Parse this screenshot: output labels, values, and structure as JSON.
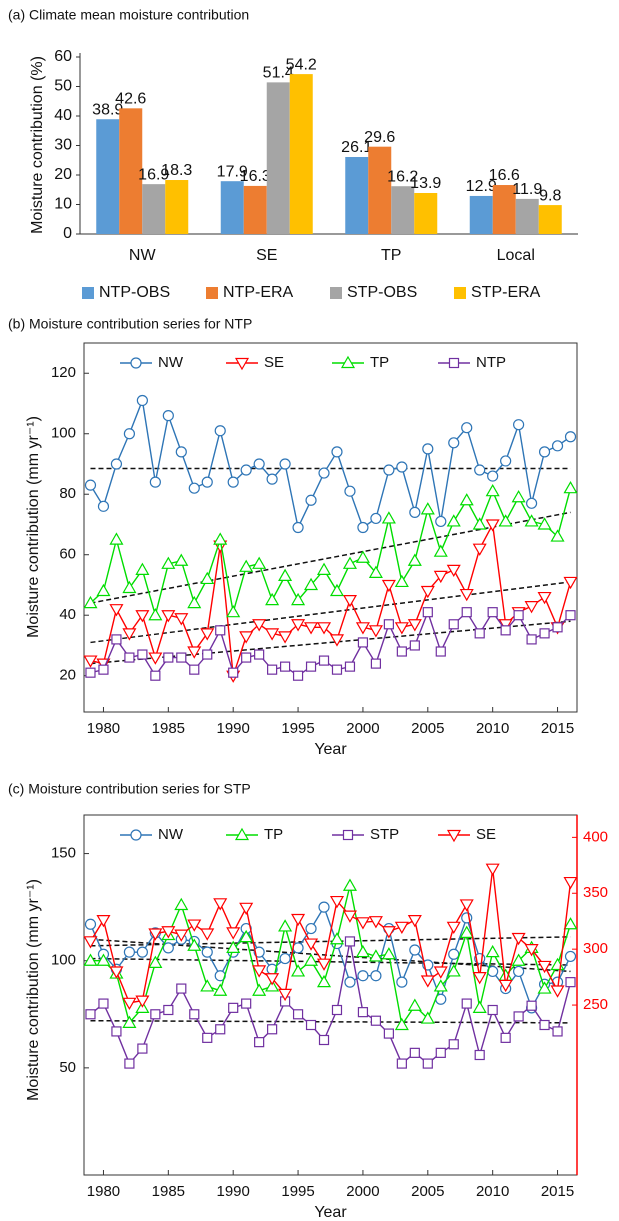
{
  "chart_data": [
    {
      "type": "bar",
      "title": "(a) Climate mean moisture contribution",
      "y_label": "Moisture contribution (%)",
      "categories": [
        "NW",
        "SE",
        "TP",
        "Local"
      ],
      "series": [
        {
          "name": "NTP-OBS",
          "color": "#5b9bd5",
          "values": [
            38.9,
            17.9,
            26.1,
            12.9
          ]
        },
        {
          "name": "NTP-ERA",
          "color": "#ed7d31",
          "values": [
            42.6,
            16.3,
            29.6,
            16.6
          ]
        },
        {
          "name": "STP-OBS",
          "color": "#a5a5a5",
          "values": [
            16.9,
            51.4,
            16.2,
            11.9
          ]
        },
        {
          "name": "STP-ERA",
          "color": "#ffc000",
          "values": [
            18.3,
            54.2,
            13.9,
            9.8
          ]
        }
      ],
      "ylim": [
        0,
        60
      ],
      "yticks": [
        0,
        10,
        20,
        30,
        40,
        50,
        60
      ],
      "legend": "bottom"
    },
    {
      "type": "line",
      "title": "(b) Moisture contribution series for NTP",
      "x_label": "Year",
      "y_label": "Moisture contribution (mm yr⁻¹)",
      "x": [
        1979,
        1980,
        1981,
        1982,
        1983,
        1984,
        1985,
        1986,
        1987,
        1988,
        1989,
        1990,
        1991,
        1992,
        1993,
        1994,
        1995,
        1996,
        1997,
        1998,
        1999,
        2000,
        2001,
        2002,
        2003,
        2004,
        2005,
        2006,
        2007,
        2008,
        2009,
        2010,
        2011,
        2012,
        2013,
        2014,
        2015,
        2016
      ],
      "series": [
        {
          "name": "NW",
          "color": "#2e75b6",
          "marker": "o",
          "values": [
            83,
            76,
            90,
            100,
            111,
            84,
            106,
            94,
            82,
            84,
            101,
            84,
            88,
            90,
            85,
            90,
            69,
            78,
            87,
            94,
            81,
            69,
            72,
            88,
            89,
            74,
            95,
            71,
            97,
            102,
            88,
            86,
            91,
            103,
            77,
            94,
            96,
            99
          ]
        },
        {
          "name": "SE",
          "color": "#ff0000",
          "marker": "v",
          "values": [
            25,
            24,
            42,
            34,
            40,
            26,
            40,
            39,
            28,
            34,
            63,
            20,
            33,
            37,
            34,
            33,
            37,
            36,
            36,
            32,
            45,
            36,
            35,
            50,
            36,
            37,
            48,
            53,
            55,
            47,
            62,
            70,
            37,
            41,
            43,
            46,
            36,
            51
          ]
        },
        {
          "name": "TP",
          "color": "#00dd00",
          "marker": "^",
          "values": [
            44,
            48,
            65,
            49,
            55,
            40,
            57,
            58,
            44,
            52,
            65,
            41,
            56,
            57,
            45,
            53,
            45,
            50,
            55,
            48,
            57,
            59,
            54,
            72,
            51,
            58,
            75,
            61,
            71,
            78,
            70,
            81,
            71,
            79,
            71,
            70,
            66,
            82
          ]
        },
        {
          "name": "NTP",
          "color": "#7030a0",
          "marker": "s",
          "values": [
            21,
            22,
            32,
            26,
            27,
            20,
            26,
            26,
            22,
            27,
            35,
            21,
            26,
            27,
            22,
            23,
            20,
            23,
            25,
            22,
            23,
            31,
            24,
            37,
            28,
            30,
            41,
            28,
            37,
            41,
            34,
            41,
            35,
            40,
            32,
            34,
            36,
            40
          ]
        }
      ],
      "trend_lines": [
        {
          "x": [
            1979,
            2016
          ],
          "values": [
            88.5,
            88.5
          ]
        },
        {
          "x": [
            1979,
            2016
          ],
          "values": [
            44,
            74
          ]
        },
        {
          "x": [
            1979,
            2016
          ],
          "values": [
            31,
            51
          ]
        },
        {
          "x": [
            1979,
            2016
          ],
          "values": [
            24,
            38
          ]
        }
      ],
      "xlim": [
        1978.5,
        2016.5
      ],
      "xticks": [
        1980,
        1985,
        1990,
        1995,
        2000,
        2005,
        2010,
        2015
      ],
      "ylim": [
        8,
        130
      ],
      "yticks": [
        20,
        40,
        60,
        80,
        100,
        120
      ],
      "legend": "top"
    },
    {
      "type": "line",
      "title": "(c) Moisture contribution series for STP",
      "x_label": "Year",
      "y_label": "Moisture contribution (mm yr⁻¹)",
      "x": [
        1979,
        1980,
        1981,
        1982,
        1983,
        1984,
        1985,
        1986,
        1987,
        1988,
        1989,
        1990,
        1991,
        1992,
        1993,
        1994,
        1995,
        1996,
        1997,
        1998,
        1999,
        2000,
        2001,
        2002,
        2003,
        2004,
        2005,
        2006,
        2007,
        2008,
        2009,
        2010,
        2011,
        2012,
        2013,
        2014,
        2015,
        2016
      ],
      "series": [
        {
          "name": "NW",
          "color": "#2e75b6",
          "marker": "o",
          "values": [
            117,
            103,
            96,
            104,
            104,
            113,
            106,
            110,
            109,
            104,
            93,
            104,
            115,
            104,
            96,
            101,
            106,
            115,
            125,
            108,
            90,
            93,
            93,
            115,
            90,
            105,
            98,
            82,
            103,
            120,
            101,
            95,
            87,
            95,
            78,
            89,
            90,
            102
          ]
        },
        {
          "name": "TP",
          "color": "#00dd00",
          "marker": "^",
          "values": [
            100,
            100,
            94,
            71,
            78,
            99,
            112,
            126,
            107,
            88,
            86,
            106,
            111,
            86,
            88,
            116,
            95,
            100,
            90,
            110,
            135,
            104,
            102,
            103,
            70,
            79,
            73,
            88,
            95,
            113,
            78,
            104,
            93,
            100,
            106,
            87,
            98,
            117
          ]
        },
        {
          "name": "STP",
          "color": "#7030a0",
          "marker": "s",
          "values": [
            75,
            80,
            67,
            52,
            59,
            75,
            77,
            87,
            75,
            64,
            68,
            78,
            80,
            62,
            68,
            81,
            75,
            70,
            63,
            77,
            109,
            76,
            72,
            66,
            52,
            57,
            52,
            57,
            61,
            80,
            56,
            77,
            64,
            74,
            79,
            70,
            67,
            90
          ]
        },
        {
          "name": "SE",
          "color": "#ff0000",
          "marker": "v",
          "axis": "y2",
          "values": [
            307,
            326,
            280,
            252,
            254,
            314,
            316,
            313,
            322,
            314,
            341,
            315,
            337,
            281,
            274,
            260,
            327,
            305,
            287,
            343,
            330,
            324,
            325,
            316,
            320,
            326,
            272,
            280,
            320,
            340,
            275,
            372,
            268,
            310,
            300,
            285,
            263,
            360
          ]
        }
      ],
      "trend_lines": [
        {
          "x": [
            1979,
            2016
          ],
          "values": [
            110,
            95
          ]
        },
        {
          "x": [
            1979,
            2016
          ],
          "values": [
            101,
            98
          ]
        },
        {
          "x": [
            1979,
            2016
          ],
          "values": [
            72,
            71
          ]
        },
        {
          "x": [
            1979,
            2016
          ],
          "values": [
            303,
            311
          ],
          "axis": "y2"
        }
      ],
      "xlim": [
        1978.5,
        2016.5
      ],
      "xticks": [
        1980,
        1985,
        1990,
        1995,
        2000,
        2005,
        2010,
        2015
      ],
      "ylim": [
        0,
        168
      ],
      "yticks": [
        50,
        100,
        150
      ],
      "y2lim": [
        98,
        420
      ],
      "y2ticks": [
        250,
        300,
        350,
        400
      ],
      "y2color": "#ff0000",
      "legend": "top"
    }
  ]
}
